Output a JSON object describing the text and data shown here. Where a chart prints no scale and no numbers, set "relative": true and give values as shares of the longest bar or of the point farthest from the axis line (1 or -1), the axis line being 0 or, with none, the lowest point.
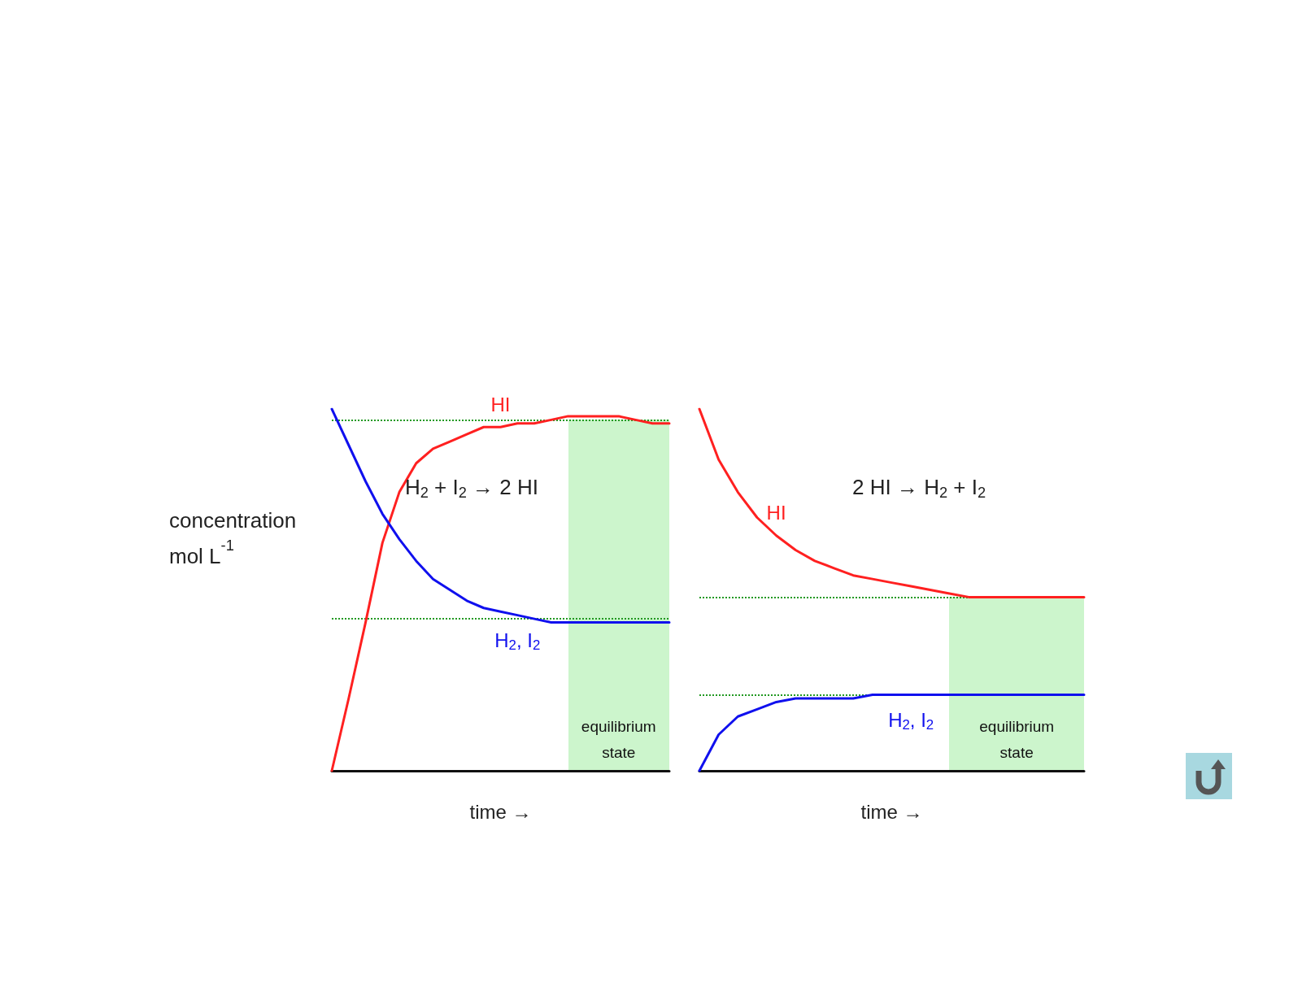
{
  "chart_data": [
    {
      "type": "line",
      "relative": true,
      "ylabel": "concentration mol L$^{-1}$",
      "xlabel": "time →",
      "annotations": [
        "H$_{2}$ + I$_{2}$ → 2 HI",
        "equilibrium state"
      ],
      "categories": [
        null,
        null,
        null,
        null,
        null,
        null,
        null,
        null,
        null,
        null,
        null,
        null,
        null,
        null,
        null,
        null,
        null,
        null,
        null,
        null,
        null
      ],
      "marker": "none",
      "line_style": "solid",
      "series": [
        {
          "name": "HI",
          "color": "#ff2020",
          "values": [
            0,
            0.2,
            0.41,
            0.63,
            0.77,
            0.85,
            0.89,
            0.91,
            0.93,
            0.95,
            0.95,
            0.96,
            0.96,
            0.97,
            0.98,
            0.98,
            0.98,
            0.98,
            0.97,
            0.96,
            0.96
          ]
        },
        {
          "name": "H$_{2}$, I$_{2}$",
          "color": "#1010ee",
          "values": [
            1,
            0.9,
            0.8,
            0.71,
            0.64,
            0.58,
            0.53,
            0.5,
            0.47,
            0.45,
            0.44,
            0.43,
            0.42,
            0.41,
            0.41,
            0.41,
            0.41,
            0.41,
            0.41,
            0.41,
            0.41
          ]
        }
      ],
      "ref_lines": [
        {
          "axis": "y",
          "value": 0.97,
          "color": "#229922",
          "line_style": "dotted"
        },
        {
          "axis": "y",
          "value": 0.42,
          "color": "#229922",
          "line_style": "dotted"
        }
      ]
    },
    {
      "type": "line",
      "relative": true,
      "xlabel": "time →",
      "annotations": [
        "2 HI → H$_{2}$ + I$_{2}$",
        "equilibrium state"
      ],
      "categories": [
        null,
        null,
        null,
        null,
        null,
        null,
        null,
        null,
        null,
        null,
        null,
        null,
        null,
        null,
        null,
        null,
        null,
        null,
        null,
        null,
        null
      ],
      "marker": "none",
      "line_style": "solid",
      "series": [
        {
          "name": "HI",
          "color": "#ff2020",
          "values": [
            1,
            0.86,
            0.77,
            0.7,
            0.65,
            0.61,
            0.58,
            0.56,
            0.54,
            0.53,
            0.52,
            0.51,
            0.5,
            0.49,
            0.48,
            0.48,
            0.48,
            0.48,
            0.48,
            0.48,
            0.48
          ]
        },
        {
          "name": "H$_{2}$, I$_{2}$",
          "color": "#1010ee",
          "values": [
            0,
            0.1,
            0.15,
            0.17,
            0.19,
            0.2,
            0.2,
            0.2,
            0.2,
            0.21,
            0.21,
            0.21,
            0.21,
            0.21,
            0.21,
            0.21,
            0.21,
            0.21,
            0.21,
            0.21,
            0.21
          ]
        }
      ],
      "ref_lines": [
        {
          "axis": "y",
          "value": 0.48,
          "color": "#229922",
          "line_style": "dotted"
        },
        {
          "axis": "y",
          "value": 0.21,
          "color": "#229922",
          "line_style": "dotted"
        }
      ]
    }
  ]
}
